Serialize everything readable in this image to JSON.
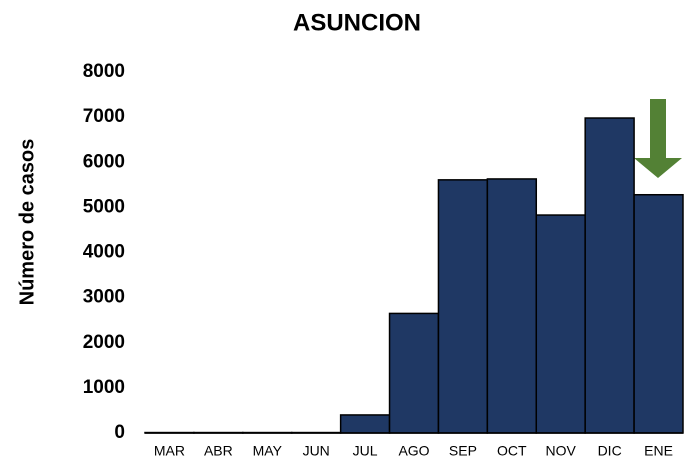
{
  "chart_data": {
    "type": "bar",
    "title": "ASUNCION",
    "y_label": "Número de casos",
    "categories": [
      "MAR",
      "ABR",
      "MAY",
      "JUN",
      "JUL",
      "AGO",
      "SEP",
      "OCT",
      "NOV",
      "DIC",
      "ENE"
    ],
    "values": [
      10,
      10,
      10,
      10,
      400,
      2650,
      5610,
      5630,
      4830,
      6980,
      5280
    ],
    "color": "#1f3864",
    "ylim": [
      0,
      8000
    ],
    "yticks": [
      0,
      1000,
      2000,
      3000,
      4000,
      5000,
      6000,
      7000,
      8000
    ],
    "grid": false
  }
}
